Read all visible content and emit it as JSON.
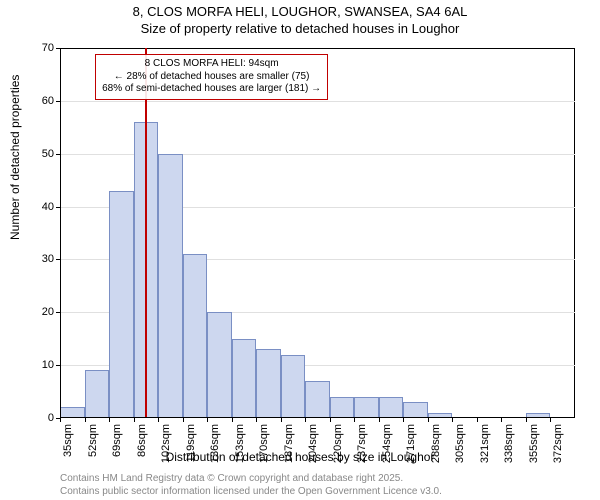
{
  "title_line1": "8, CLOS MORFA HELI, LOUGHOR, SWANSEA, SA4 6AL",
  "title_line2": "Size of property relative to detached houses in Loughor",
  "y_axis_label": "Number of detached properties",
  "x_axis_label": "Distribution of detached houses by size in Loughor",
  "footer_line1": "Contains HM Land Registry data © Crown copyright and database right 2025.",
  "footer_line2": "Contains public sector information licensed under the Open Government Licence v3.0.",
  "annotation": {
    "line1": "8 CLOS MORFA HELI: 94sqm",
    "line2": "← 28% of detached houses are smaller (75)",
    "line3": "68% of semi-detached houses are larger (181) →"
  },
  "chart": {
    "type": "histogram",
    "bar_fill": "#cdd7ef",
    "bar_border": "#7a8fc4",
    "grid_color": "#e0e0e0",
    "background_color": "#ffffff",
    "marker_color": "#c00000",
    "marker_x_value": 94,
    "ylim": [
      0,
      70
    ],
    "ytick_step": 10,
    "x_start": 35,
    "x_step": 17,
    "x_categories": [
      "35sqm",
      "52sqm",
      "69sqm",
      "86sqm",
      "102sqm",
      "119sqm",
      "136sqm",
      "153sqm",
      "170sqm",
      "187sqm",
      "204sqm",
      "220sqm",
      "237sqm",
      "254sqm",
      "271sqm",
      "288sqm",
      "305sqm",
      "321sqm",
      "338sqm",
      "355sqm",
      "372sqm"
    ],
    "values": [
      2,
      9,
      43,
      56,
      50,
      31,
      20,
      15,
      13,
      12,
      7,
      4,
      4,
      4,
      3,
      1,
      0,
      0,
      0,
      1,
      0
    ]
  }
}
